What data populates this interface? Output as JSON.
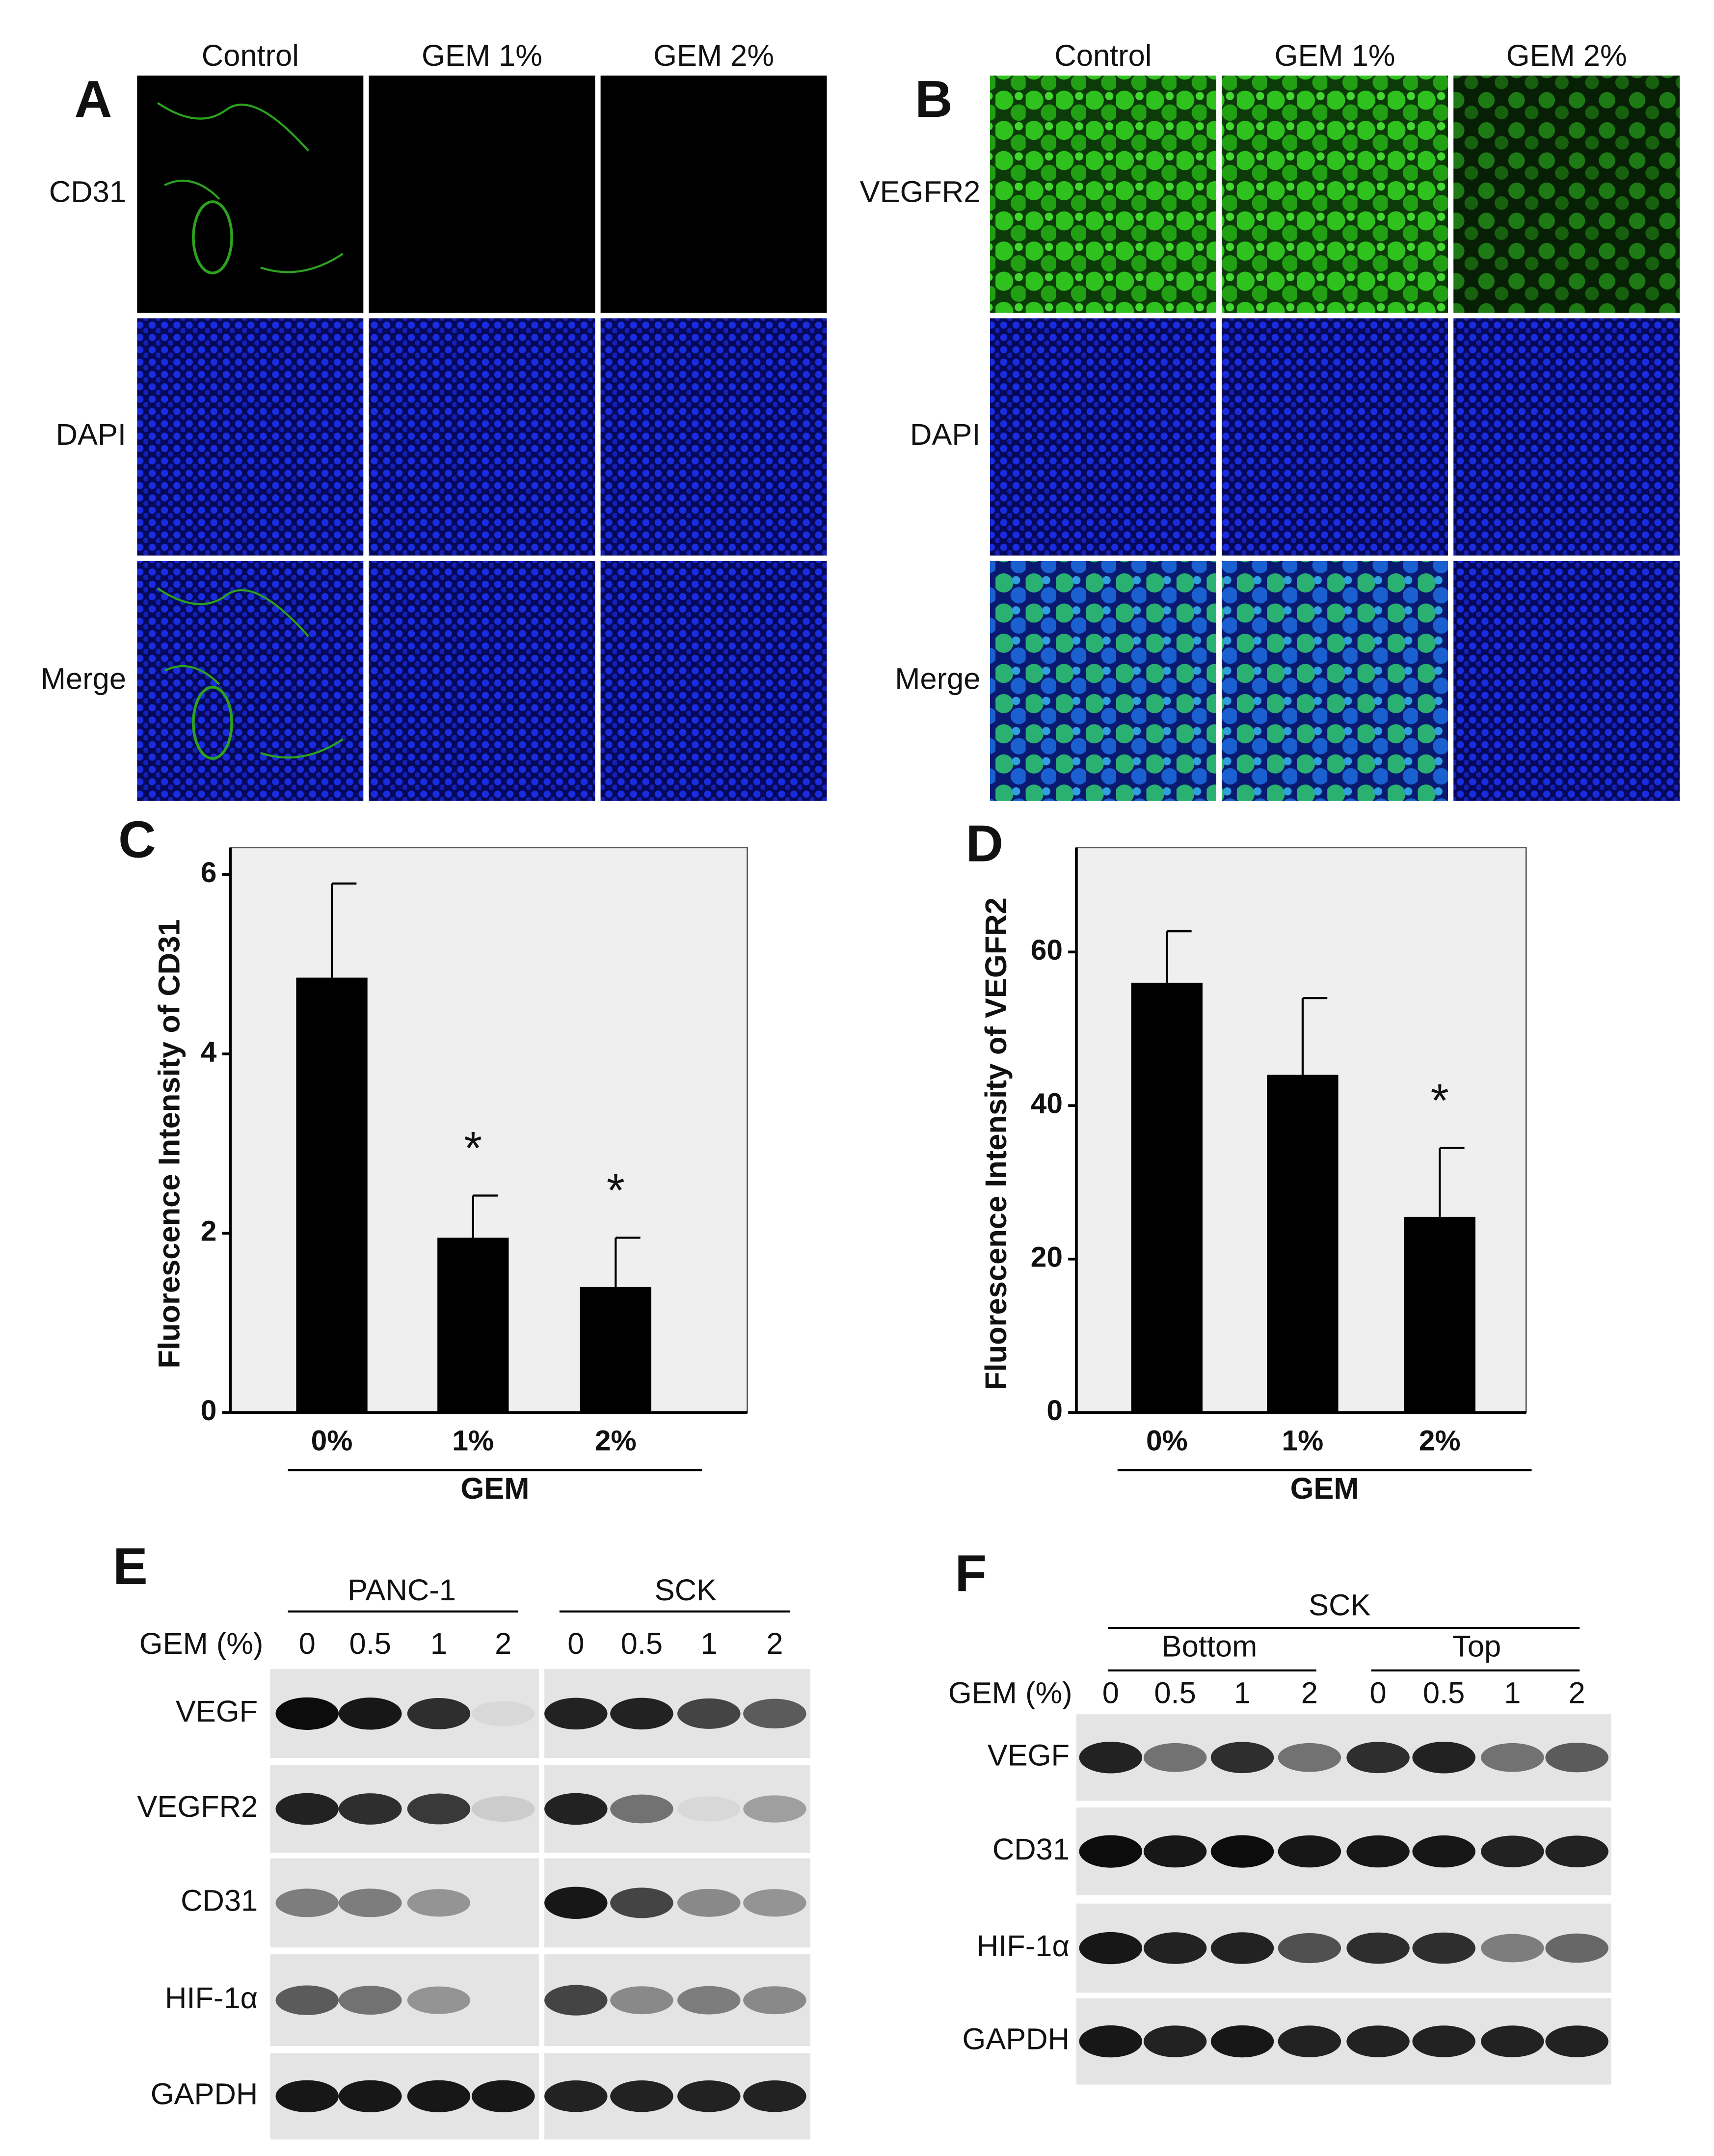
{
  "panels": {
    "A": {
      "label": "A",
      "columns": [
        "Control",
        "GEM 1%",
        "GEM 2%"
      ],
      "rows": [
        "CD31",
        "DAPI",
        "Merge"
      ]
    },
    "B": {
      "label": "B",
      "columns": [
        "Control",
        "GEM 1%",
        "GEM 2%"
      ],
      "rows": [
        "VEGFR2",
        "DAPI",
        "Merge"
      ]
    },
    "E": {
      "label": "E",
      "groups": [
        "PANC-1",
        "SCK"
      ],
      "treatment_label": "GEM (%)",
      "lanes": [
        0,
        0.5,
        1,
        2,
        0,
        0.5,
        1,
        2
      ],
      "rows": [
        "VEGF",
        "VEGFR2",
        "CD31",
        "HIF-1α",
        "GAPDH"
      ]
    },
    "F": {
      "label": "F",
      "cell_line": "SCK",
      "groups": [
        "Bottom",
        "Top"
      ],
      "treatment_label": "GEM (%)",
      "lanes": [
        0,
        0.5,
        1,
        2,
        0,
        0.5,
        1,
        2
      ],
      "rows": [
        "VEGF",
        "CD31",
        "HIF-1α",
        "GAPDH"
      ]
    }
  },
  "chart_data": [
    {
      "type": "bar",
      "panel_label": "C",
      "y_label": "Fluorescence Intensity of CD31",
      "x_label": "GEM",
      "categories": [
        "0%",
        "1%",
        "2%"
      ],
      "values": [
        4.85,
        1.95,
        1.4
      ],
      "errors": [
        1.05,
        0.47,
        0.55
      ],
      "color": "#000000",
      "ylim": [
        0,
        6.3
      ],
      "yticks": [
        0,
        2,
        4,
        6
      ],
      "annotations": [
        {
          "text": "*",
          "x": "1%"
        },
        {
          "text": "*",
          "x": "2%"
        }
      ]
    },
    {
      "type": "bar",
      "panel_label": "D",
      "y_label": "Fluorescence Intensity of VEGFR2",
      "x_label": "GEM",
      "categories": [
        "0%",
        "1%",
        "2%"
      ],
      "values": [
        56,
        44,
        25.5
      ],
      "errors": [
        6.7,
        10,
        9
      ],
      "color": "#000000",
      "ylim": [
        0,
        73.6
      ],
      "yticks": [
        0,
        20,
        40,
        60
      ],
      "annotations": [
        {
          "text": "*",
          "x": "2%"
        }
      ]
    }
  ]
}
